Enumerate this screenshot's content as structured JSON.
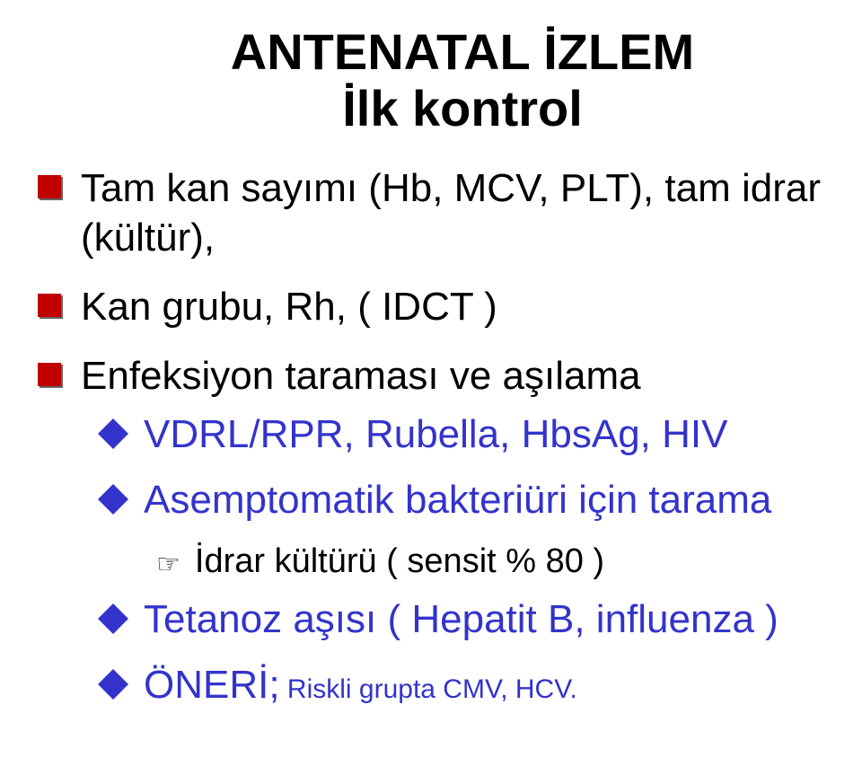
{
  "title": {
    "line1": "ANTENATAL İZLEM",
    "line2": "İlk kontrol",
    "color": "#000000",
    "fontsize": 56
  },
  "colors": {
    "background": "#ffffff",
    "text_primary": "#000000",
    "accent_blue": "#3333cc",
    "bullet_red": "#c00000"
  },
  "bullets": [
    {
      "text": "Tam kan sayımı (Hb, MCV, PLT), tam idrar (kültür),",
      "marker_color": "#c00000",
      "text_color": "#000000",
      "fontsize": 44
    },
    {
      "text": "Kan grubu, Rh, ( IDCT )",
      "marker_color": "#c00000",
      "text_color": "#000000",
      "fontsize": 44
    },
    {
      "text": "Enfeksiyon taraması ve aşılama",
      "marker_color": "#c00000",
      "text_color": "#000000",
      "fontsize": 44,
      "sub": [
        {
          "text": "VDRL/RPR, Rubella, HbsAg, HIV",
          "marker_color": "#3333cc",
          "text_color": "#3333cc",
          "fontsize": 44
        },
        {
          "text": "Asemptomatik bakteriüri için tarama",
          "marker_color": "#3333cc",
          "text_color": "#3333cc",
          "fontsize": 44,
          "sub": [
            {
              "text": "İdrar kültürü ( sensit % 80 )",
              "marker": "☞",
              "text_color": "#000000",
              "fontsize": 38
            }
          ]
        },
        {
          "text": "Tetanoz aşısı ( Hepatit B, influenza )",
          "marker_color": "#3333cc",
          "text_color": "#3333cc",
          "fontsize": 44
        },
        {
          "rec_label": "ÖNERİ;",
          "rec_text": " Riskli grupta CMV, HCV.",
          "marker_color": "#3333cc",
          "text_color": "#3333cc",
          "fontsize_label": 44,
          "fontsize_text": 30
        }
      ]
    }
  ]
}
